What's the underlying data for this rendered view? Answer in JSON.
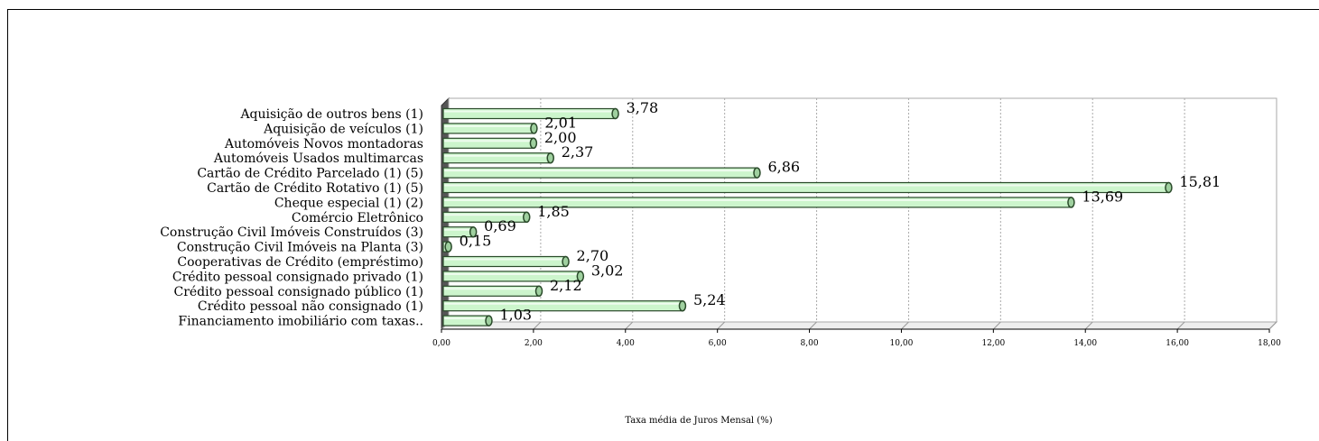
{
  "chart_data": {
    "type": "bar",
    "orientation": "horizontal",
    "categories": [
      "Aquisição de outros bens (1)",
      "Aquisição de veículos (1)",
      "Automóveis Novos montadoras",
      "Automóveis Usados multimarcas",
      "Cartão de Crédito Parcelado (1) (5)",
      "Cartão de Crédito Rotativo (1) (5)",
      "Cheque especial (1) (2)",
      "Comércio Eletrônico",
      "Construção Civil Imóveis Construídos (3)",
      "Construção Civil Imóveis na Planta (3)",
      "Cooperativas de Crédito (empréstimo)",
      "Crédito pessoal consignado privado (1)",
      "Crédito pessoal consignado público (1)",
      "Crédito pessoal não consignado (1)",
      "Financiamento imobiliário com taxas.."
    ],
    "values": [
      3.78,
      2.01,
      2.0,
      2.37,
      6.86,
      15.81,
      13.69,
      1.85,
      0.69,
      0.15,
      2.7,
      3.02,
      2.12,
      5.24,
      1.03
    ],
    "value_labels": [
      "3,78",
      "2,01",
      "2,00",
      "2,37",
      "6,86",
      "15,81",
      "13,69",
      "1,85",
      "0,69",
      "0,15",
      "2,70",
      "3,02",
      "2,12",
      "5,24",
      "1,03"
    ],
    "xlim": [
      0,
      18
    ],
    "xticks": [
      "0,00",
      "2,00",
      "4,00",
      "6,00",
      "8,00",
      "10,00",
      "12,00",
      "14,00",
      "16,00",
      "18,00"
    ],
    "xlabel": "Taxa média de Juros Mensal (%)",
    "grid": "vertical dashed",
    "bar_color": "#ccf5cc",
    "bar_edge_color": "#2a4a2a"
  }
}
